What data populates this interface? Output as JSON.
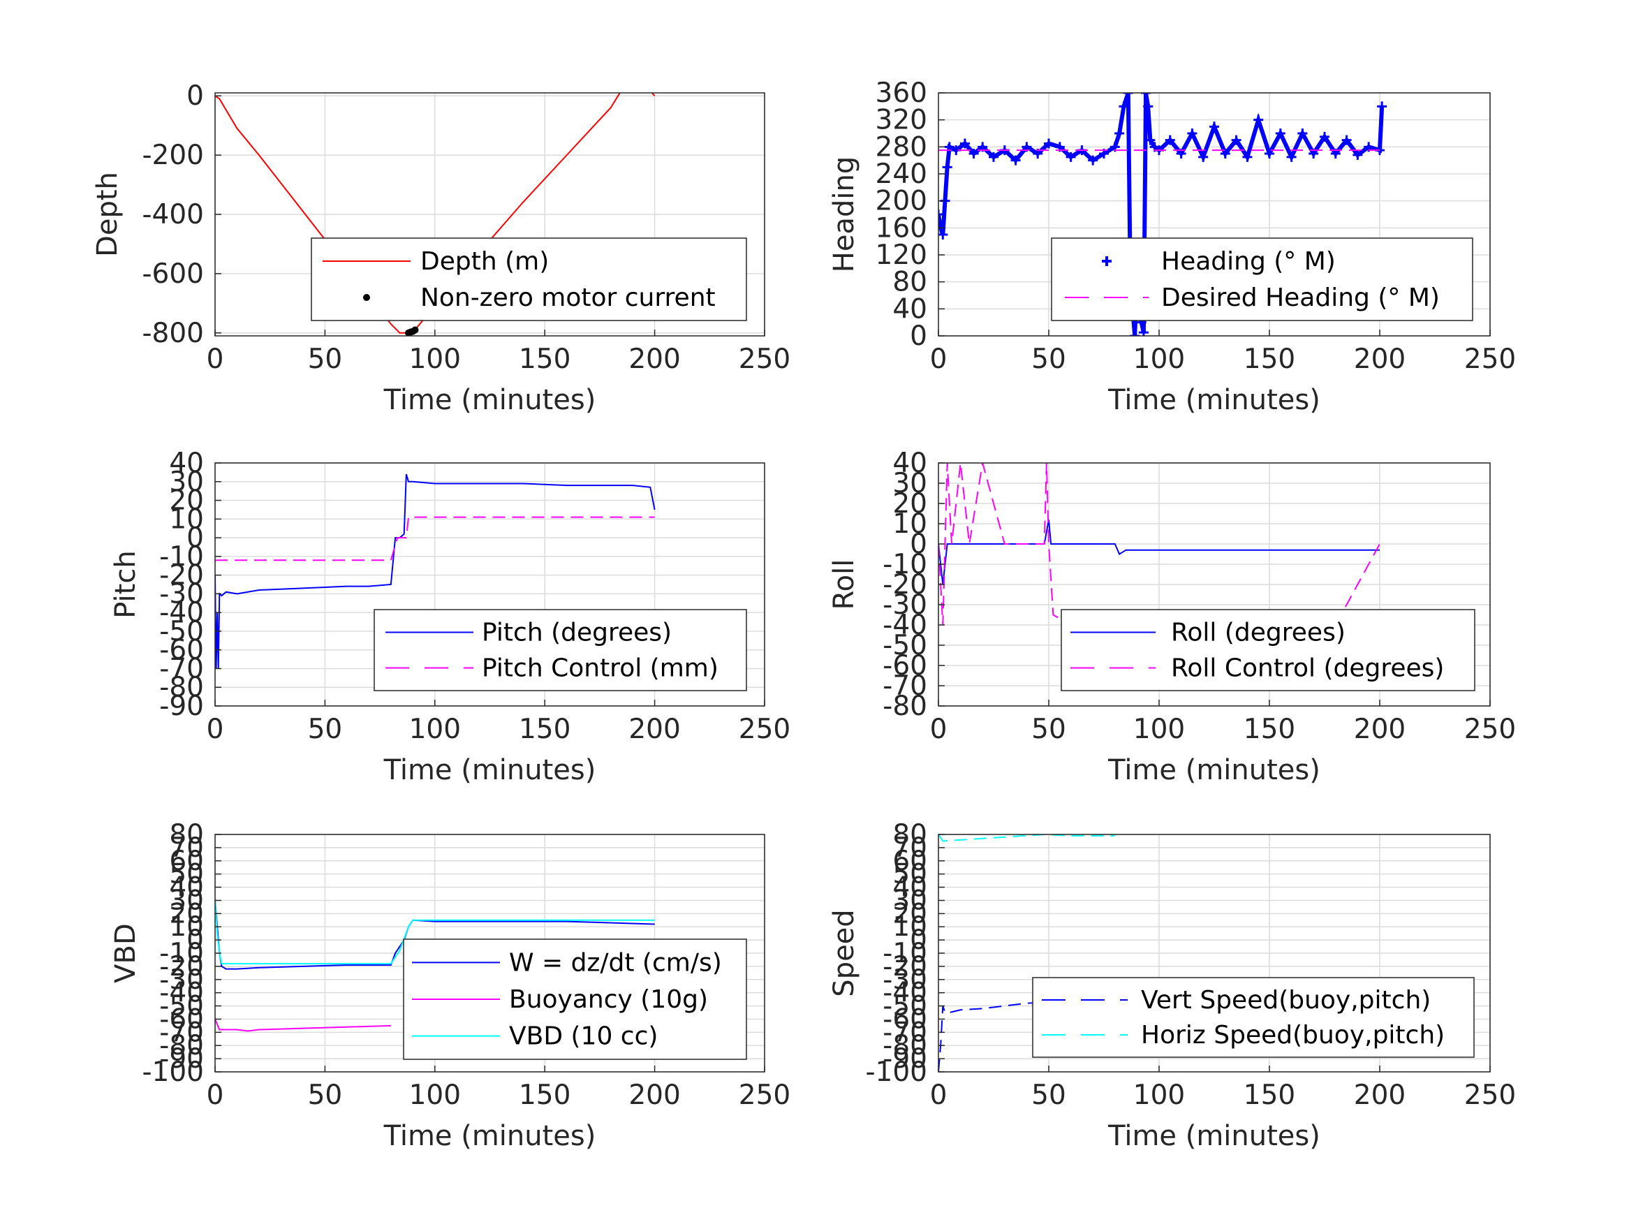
{
  "chart_data": [
    {
      "type": "line",
      "xlabel": "Time (minutes)",
      "ylabel": "Depth",
      "xlim": [
        0,
        250
      ],
      "ylim": [
        -810,
        10
      ],
      "xticks": [
        0,
        50,
        100,
        150,
        200,
        250
      ],
      "yticks": [
        0,
        -200,
        -400,
        -600,
        -800
      ],
      "grid": true,
      "legend_position": "bottom-right",
      "series": [
        {
          "name": "Depth (m)",
          "color": "#ff0000",
          "style": "solid",
          "x": [
            0,
            2,
            10,
            20,
            40,
            60,
            80,
            84,
            88,
            90,
            92,
            96,
            100,
            120,
            140,
            160,
            180,
            190,
            200
          ],
          "y": [
            0,
            -10,
            -110,
            -200,
            -390,
            -580,
            -770,
            -800,
            -800,
            -795,
            -780,
            -745,
            -710,
            -530,
            -360,
            -200,
            -40,
            80,
            0
          ]
        },
        {
          "name": "Non-zero motor current",
          "color": "#000000",
          "style": "marker-dot",
          "x": [
            70,
            88,
            89,
            90,
            91
          ],
          "y": [
            -683,
            -800,
            -797,
            -795,
            -790
          ]
        }
      ]
    },
    {
      "type": "line",
      "xlabel": "Time (minutes)",
      "ylabel": "Heading",
      "xlim": [
        0,
        250
      ],
      "ylim": [
        0,
        360
      ],
      "xticks": [
        0,
        50,
        100,
        150,
        200,
        250
      ],
      "yticks": [
        0,
        40,
        80,
        120,
        160,
        200,
        240,
        280,
        320,
        360
      ],
      "grid": true,
      "legend_position": "bottom-right",
      "series": [
        {
          "name": "Heading (° M)",
          "color": "#0000ff",
          "style": "marker-plus",
          "x": [
            0,
            1,
            2,
            3,
            4,
            5,
            8,
            12,
            16,
            20,
            25,
            30,
            35,
            40,
            45,
            50,
            55,
            60,
            65,
            70,
            75,
            80,
            82,
            84,
            86,
            87,
            88,
            89,
            90,
            91,
            92,
            93,
            94,
            95,
            96,
            98,
            100,
            105,
            110,
            115,
            120,
            125,
            130,
            135,
            140,
            145,
            150,
            155,
            160,
            165,
            170,
            175,
            180,
            185,
            190,
            195,
            200,
            201
          ],
          "y": [
            180,
            160,
            150,
            200,
            250,
            280,
            275,
            285,
            270,
            280,
            265,
            275,
            260,
            280,
            270,
            285,
            280,
            265,
            275,
            260,
            270,
            280,
            300,
            340,
            360,
            80,
            40,
            0,
            90,
            60,
            20,
            5,
            360,
            340,
            290,
            280,
            275,
            290,
            270,
            300,
            265,
            310,
            270,
            290,
            265,
            320,
            270,
            300,
            265,
            300,
            270,
            295,
            270,
            290,
            268,
            280,
            275,
            340
          ]
        },
        {
          "name": "Desired Heading (° M)",
          "color": "#ff00ff",
          "style": "dashed",
          "x": [
            0,
            200
          ],
          "y": [
            275,
            275
          ]
        }
      ]
    },
    {
      "type": "line",
      "xlabel": "Time (minutes)",
      "ylabel": "Pitch",
      "xlim": [
        0,
        250
      ],
      "ylim": [
        -90,
        40
      ],
      "xticks": [
        0,
        50,
        100,
        150,
        200,
        250
      ],
      "yticks": [
        40,
        30,
        20,
        10,
        0,
        -10,
        -20,
        -30,
        -40,
        -50,
        -60,
        -70,
        -80,
        -90
      ],
      "grid": true,
      "legend_position": "bottom-right",
      "series": [
        {
          "name": "Pitch (degrees)",
          "color": "#0000ff",
          "style": "solid",
          "x": [
            0,
            0.5,
            1,
            1.5,
            2,
            3,
            5,
            10,
            20,
            40,
            60,
            70,
            80,
            82,
            84,
            86,
            87,
            88,
            90,
            100,
            120,
            140,
            160,
            180,
            190,
            198,
            200
          ],
          "y": [
            -20,
            -70,
            -40,
            -70,
            -30,
            -31,
            -29,
            -30,
            -28,
            -27,
            -26,
            -26,
            -25,
            0,
            0,
            2,
            34,
            30,
            30,
            29,
            29,
            29,
            28,
            28,
            28,
            27,
            15
          ]
        },
        {
          "name": "Pitch Control (mm)",
          "color": "#ff00ff",
          "style": "dashed",
          "x": [
            0,
            80,
            81,
            83,
            85,
            87,
            88,
            200
          ],
          "y": [
            -12,
            -12,
            -8,
            0,
            0,
            0,
            11,
            11
          ]
        }
      ]
    },
    {
      "type": "line",
      "xlabel": "Time (minutes)",
      "ylabel": "Roll",
      "xlim": [
        0,
        250
      ],
      "ylim": [
        -80,
        40
      ],
      "xticks": [
        0,
        50,
        100,
        150,
        200,
        250
      ],
      "yticks": [
        40,
        30,
        20,
        10,
        0,
        -10,
        -20,
        -30,
        -40,
        -50,
        -60,
        -70,
        -80
      ],
      "grid": true,
      "legend_position": "bottom-right",
      "series": [
        {
          "name": "Roll (degrees)",
          "color": "#0000ff",
          "style": "solid",
          "x": [
            0,
            2,
            3,
            4,
            5,
            10,
            20,
            30,
            40,
            48,
            50,
            51,
            55,
            60,
            70,
            80,
            82,
            85,
            90,
            100,
            110,
            120,
            130,
            140,
            150,
            160,
            170,
            180,
            190,
            200
          ],
          "y": [
            0,
            -20,
            -10,
            0,
            0,
            0,
            0,
            0,
            0,
            0,
            12,
            0,
            0,
            0,
            0,
            0,
            -5,
            -3,
            -3,
            -3,
            -3,
            -3,
            -3,
            -3,
            -3,
            -3,
            -3,
            -3,
            -3,
            -3
          ]
        },
        {
          "name": "Roll Control (degrees)",
          "color": "#ff00ff",
          "style": "dashed",
          "x": [
            0,
            2,
            4,
            6,
            10,
            14,
            20,
            30,
            40,
            48,
            49,
            50,
            52,
            60,
            80,
            100,
            120,
            140,
            160,
            180,
            200
          ],
          "y": [
            0,
            -40,
            40,
            0,
            40,
            0,
            40,
            0,
            0,
            0,
            40,
            0,
            -35,
            -40,
            -40,
            -40,
            -40,
            -40,
            -40,
            -40,
            0
          ]
        }
      ]
    },
    {
      "type": "line",
      "xlabel": "Time (minutes)",
      "ylabel": "VBD",
      "xlim": [
        0,
        250
      ],
      "ylim": [
        -100,
        80
      ],
      "xticks": [
        0,
        50,
        100,
        150,
        200,
        250
      ],
      "yticks": [
        80,
        70,
        60,
        50,
        40,
        30,
        20,
        10,
        0,
        -10,
        -20,
        -30,
        -40,
        -50,
        -60,
        -70,
        -80,
        -90,
        -100
      ],
      "grid": true,
      "legend_position": "bottom-right",
      "series": [
        {
          "name": "W = dz/dt (cm/s)",
          "color": "#0000ff",
          "style": "solid",
          "x": [
            0,
            1,
            2,
            3,
            5,
            10,
            20,
            40,
            60,
            80,
            82,
            84,
            86,
            88,
            90,
            100,
            120,
            140,
            160,
            180,
            200
          ],
          "y": [
            30,
            10,
            -10,
            -20,
            -22,
            -22,
            -21,
            -20,
            -19,
            -19,
            -10,
            -5,
            0,
            10,
            15,
            14,
            14,
            14,
            14,
            13,
            12
          ]
        },
        {
          "name": "Buoyancy (10g)",
          "color": "#ff00ff",
          "style": "solid",
          "x": [
            0,
            2,
            5,
            10,
            15,
            20,
            40,
            60,
            80
          ],
          "y": [
            -60,
            -68,
            -68,
            -68,
            -69,
            -68,
            -67,
            -66,
            -65
          ]
        },
        {
          "name": "VBD (10 cc)",
          "color": "#00ffff",
          "style": "solid",
          "x": [
            0,
            1,
            2,
            3,
            5,
            10,
            40,
            80,
            84,
            88,
            90,
            100,
            150,
            200
          ],
          "y": [
            30,
            5,
            -10,
            -18,
            -18,
            -18,
            -18,
            -18,
            -8,
            10,
            15,
            15,
            15,
            15
          ]
        }
      ]
    },
    {
      "type": "line",
      "xlabel": "Time (minutes)",
      "ylabel": "Speed",
      "xlim": [
        0,
        250
      ],
      "ylim": [
        -100,
        80
      ],
      "xticks": [
        0,
        50,
        100,
        150,
        200,
        250
      ],
      "yticks": [
        80,
        70,
        60,
        50,
        40,
        30,
        20,
        10,
        0,
        -10,
        -20,
        -30,
        -40,
        -50,
        -60,
        -70,
        -80,
        -90,
        -100
      ],
      "grid": true,
      "legend_position": "bottom-right",
      "series": [
        {
          "name": "Vert Speed(buoy,pitch)",
          "color": "#0000ff",
          "style": "dashed",
          "x": [
            0,
            1,
            2,
            3,
            5,
            10,
            20,
            30,
            40,
            50,
            60,
            70,
            80
          ],
          "y": [
            -100,
            -80,
            -50,
            -55,
            -55,
            -53,
            -52,
            -50,
            -48,
            -47,
            -46,
            -45,
            -45
          ]
        },
        {
          "name": "Horiz Speed(buoy,pitch)",
          "color": "#00ffff",
          "style": "dashed",
          "x": [
            0,
            2,
            48,
            60,
            70,
            80
          ],
          "y": [
            80,
            75,
            80,
            79,
            79,
            79
          ]
        }
      ]
    }
  ]
}
